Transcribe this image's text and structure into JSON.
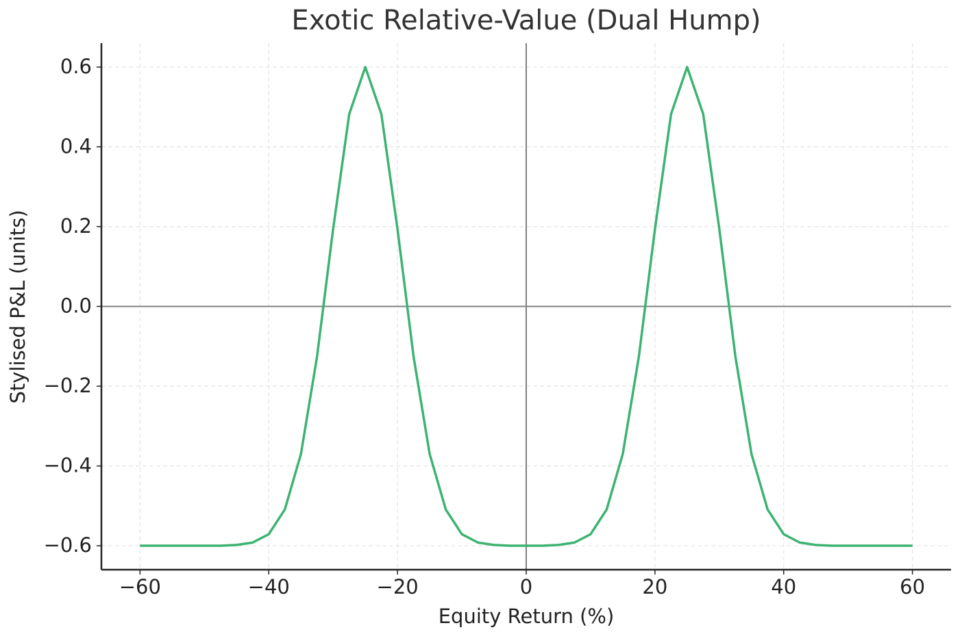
{
  "chart_data": {
    "type": "line",
    "title": "Exotic Relative-Value (Dual Hump)",
    "x_label": "Equity Return (%)",
    "y_label": "Stylised P&L (units)",
    "x": [
      -60,
      -57.5,
      -55,
      -52.5,
      -50,
      -47.5,
      -45,
      -42.5,
      -40,
      -37.5,
      -35,
      -32.5,
      -30,
      -27.5,
      -25,
      -22.5,
      -20,
      -17.5,
      -15,
      -12.5,
      -10,
      -7.5,
      -5,
      -2.5,
      0,
      2.5,
      5,
      7.5,
      10,
      12.5,
      15,
      17.5,
      20,
      22.5,
      25,
      27.5,
      30,
      32.5,
      35,
      37.5,
      40,
      42.5,
      45,
      47.5,
      50,
      52.5,
      55,
      57.5,
      60
    ],
    "series": [
      {
        "color": "#3cb371",
        "values": [
          -0.6,
          -0.6,
          -0.6,
          -0.6,
          -0.6,
          -0.6,
          -0.598,
          -0.592,
          -0.571,
          -0.509,
          -0.37,
          -0.126,
          0.194,
          0.482,
          0.6,
          0.482,
          0.194,
          -0.126,
          -0.37,
          -0.509,
          -0.571,
          -0.592,
          -0.598,
          -0.6,
          -0.6,
          -0.6,
          -0.598,
          -0.592,
          -0.571,
          -0.509,
          -0.37,
          -0.126,
          0.194,
          0.482,
          0.6,
          0.482,
          0.194,
          -0.126,
          -0.37,
          -0.509,
          -0.571,
          -0.592,
          -0.598,
          -0.6,
          -0.6,
          -0.6,
          -0.6,
          -0.6,
          -0.6
        ]
      }
    ],
    "xlim": [
      -66,
      66
    ],
    "ylim": [
      -0.66,
      0.66
    ],
    "xticks": [
      {
        "value": -60,
        "label": "−60"
      },
      {
        "value": -40,
        "label": "−40"
      },
      {
        "value": -20,
        "label": "−20"
      },
      0,
      20,
      40,
      60
    ],
    "yticks": [
      {
        "value": -0.6,
        "label": "−0.6"
      },
      {
        "value": -0.4,
        "label": "−0.4"
      },
      {
        "value": -0.2,
        "label": "−0.2"
      },
      {
        "value": 0,
        "label": "0.0"
      },
      0.2,
      0.4,
      0.6
    ],
    "grid": true,
    "hline": 0,
    "vline": 0
  }
}
